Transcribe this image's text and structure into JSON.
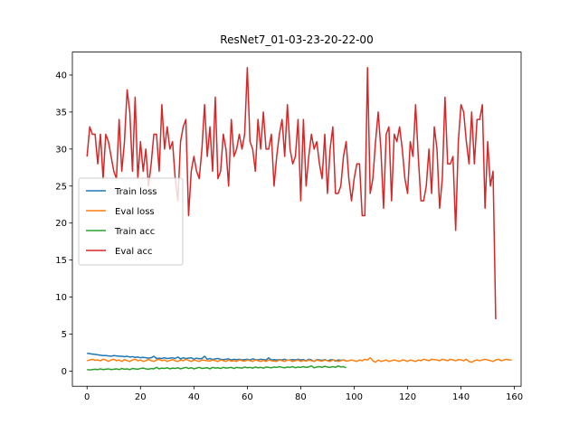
{
  "chart_data": {
    "type": "line",
    "title": "ResNet7_01-03-23-20-22-00",
    "xlabel": "",
    "ylabel": "",
    "xlim": [
      -5.5,
      162.5
    ],
    "ylim": [
      -2.05,
      43.1
    ],
    "x_ticks": [
      0,
      20,
      40,
      60,
      80,
      100,
      120,
      140,
      160
    ],
    "y_ticks": [
      0,
      5,
      10,
      15,
      20,
      25,
      30,
      35,
      40
    ],
    "grid": false,
    "legend_position": "center-left",
    "series": [
      {
        "name": "Train loss",
        "color": "#1f77b4",
        "values": [
          2.4,
          2.35,
          2.3,
          2.25,
          2.2,
          2.15,
          2.1,
          2.1,
          2.05,
          2.0,
          2.1,
          2.05,
          2.0,
          2.0,
          1.95,
          2.0,
          1.9,
          1.95,
          1.85,
          1.9,
          1.8,
          1.85,
          1.8,
          1.75,
          1.8,
          2.0,
          1.7,
          1.75,
          1.7,
          1.8,
          1.7,
          1.75,
          1.8,
          1.7,
          1.9,
          1.65,
          1.8,
          1.7,
          1.75,
          1.8,
          1.6,
          1.75,
          1.65,
          1.7,
          2.0,
          1.6,
          1.7,
          1.55,
          1.65,
          1.7,
          1.6,
          1.55,
          1.6,
          1.65,
          1.5,
          1.6,
          1.55,
          1.6,
          1.5,
          1.55,
          1.6,
          1.5,
          1.65,
          1.55,
          1.5,
          1.6,
          1.55,
          1.5,
          1.8,
          1.5,
          1.55,
          1.5,
          1.55,
          1.5,
          1.6,
          1.45,
          1.5,
          1.55,
          1.5,
          1.6,
          1.5,
          1.55,
          1.4,
          1.6,
          1.5,
          1.3,
          1.55,
          1.5,
          1.45,
          1.55,
          1.4,
          1.5,
          1.55,
          1.35,
          1.5,
          1.45,
          1.5,
          1.4
        ]
      },
      {
        "name": "Eval loss",
        "color": "#ff7f0e",
        "values": [
          1.4,
          1.5,
          1.6,
          1.45,
          1.5,
          1.4,
          1.6,
          1.5,
          1.3,
          1.5,
          1.6,
          1.4,
          1.5,
          1.3,
          1.55,
          1.4,
          1.3,
          1.5,
          1.6,
          1.4,
          1.5,
          1.3,
          1.4,
          1.6,
          1.4,
          1.3,
          1.5,
          1.6,
          1.4,
          1.5,
          1.3,
          1.45,
          1.55,
          1.4,
          1.3,
          1.5,
          1.4,
          1.6,
          1.45,
          1.3,
          1.5,
          1.4,
          1.3,
          1.5,
          1.45,
          1.4,
          1.35,
          1.5,
          1.4,
          1.3,
          1.5,
          1.4,
          1.3,
          1.5,
          1.35,
          1.4,
          1.3,
          1.5,
          1.4,
          1.35,
          1.5,
          1.4,
          1.3,
          1.5,
          1.4,
          1.3,
          1.45,
          1.3,
          1.5,
          1.4,
          1.35,
          1.3,
          1.5,
          1.4,
          1.3,
          1.5,
          1.45,
          1.3,
          1.4,
          1.5,
          1.3,
          1.45,
          1.35,
          1.5,
          1.4,
          1.3,
          1.5,
          1.4,
          1.35,
          1.5,
          1.4,
          1.3,
          1.5,
          1.45,
          1.3,
          1.4,
          1.5,
          1.35,
          1.4,
          1.5,
          1.4,
          1.3,
          1.5,
          1.4,
          1.6,
          1.5,
          1.8,
          1.4,
          1.2,
          1.5,
          1.3,
          1.4,
          1.5,
          1.3,
          1.4,
          1.5,
          1.4,
          1.3,
          1.5,
          1.45,
          1.3,
          1.5,
          1.4,
          1.3,
          1.5,
          1.4,
          1.6,
          1.5,
          1.4,
          1.6,
          1.55,
          1.5,
          1.4,
          1.6,
          1.5,
          1.4,
          1.6,
          1.5,
          1.4,
          1.55,
          1.5,
          1.4,
          1.6,
          1.3,
          1.2,
          1.4,
          1.5,
          1.4,
          1.5,
          1.6,
          1.5,
          1.4,
          1.3,
          1.5,
          1.6,
          1.4,
          1.5,
          1.6,
          1.5,
          1.5
        ]
      },
      {
        "name": "Train acc",
        "color": "#2ca02c",
        "values": [
          0.2,
          0.15,
          0.2,
          0.25,
          0.2,
          0.3,
          0.2,
          0.25,
          0.3,
          0.2,
          0.25,
          0.3,
          0.2,
          0.35,
          0.25,
          0.3,
          0.2,
          0.35,
          0.3,
          0.25,
          0.35,
          0.4,
          0.3,
          0.25,
          0.35,
          0.3,
          0.5,
          0.3,
          0.4,
          0.35,
          0.45,
          0.3,
          0.4,
          0.35,
          0.45,
          0.3,
          0.4,
          0.5,
          0.35,
          0.45,
          0.3,
          0.4,
          0.5,
          0.35,
          0.4,
          0.45,
          0.3,
          0.5,
          0.4,
          0.45,
          0.35,
          0.5,
          0.4,
          0.45,
          0.5,
          0.35,
          0.5,
          0.45,
          0.4,
          0.55,
          0.45,
          0.5,
          0.4,
          0.55,
          0.45,
          0.5,
          0.4,
          0.55,
          0.5,
          0.45,
          0.55,
          0.5,
          0.6,
          0.5,
          0.45,
          0.55,
          0.5,
          0.6,
          0.45,
          0.55,
          0.5,
          0.6,
          0.5,
          0.55,
          0.7,
          0.45,
          0.55,
          0.6,
          0.5,
          0.65,
          0.55,
          0.5,
          0.6,
          0.5,
          0.7,
          0.55,
          0.6,
          0.45
        ]
      },
      {
        "name": "Eval acc",
        "color": "#d62728",
        "values": [
          29,
          33,
          32,
          32,
          28,
          32,
          26,
          32,
          31,
          29,
          27,
          26,
          34,
          27,
          31,
          38,
          35,
          27,
          37,
          26,
          31,
          27,
          30,
          25,
          28,
          32,
          32,
          27,
          36,
          30,
          33,
          30,
          31,
          26,
          23,
          31,
          33,
          34,
          21,
          27,
          29,
          27,
          26,
          30,
          36,
          29,
          33,
          27,
          37,
          26,
          27,
          32,
          30,
          25,
          34,
          29,
          30,
          32,
          30,
          32,
          41,
          31,
          30,
          27,
          34,
          30,
          35,
          30,
          30,
          32,
          25,
          29,
          32,
          34,
          29,
          36,
          30,
          28,
          29,
          34,
          23,
          34,
          25,
          29,
          32,
          30,
          31,
          28,
          26,
          32,
          24,
          30,
          33,
          24,
          24,
          25,
          29,
          31,
          26,
          23,
          26,
          28,
          28,
          21,
          21,
          41,
          24,
          26,
          31,
          35,
          30,
          22,
          32,
          33,
          23,
          32,
          31,
          33,
          30,
          26,
          24,
          31,
          29,
          36,
          29,
          23,
          23,
          25,
          30,
          24,
          33,
          30,
          22,
          26,
          37,
          28,
          28,
          29,
          19,
          31,
          36,
          35,
          31,
          28,
          35,
          28,
          34,
          34,
          36,
          22,
          31,
          25,
          27,
          7
        ]
      }
    ]
  }
}
